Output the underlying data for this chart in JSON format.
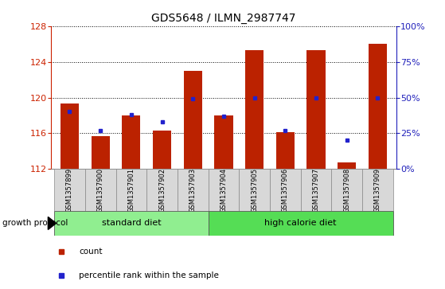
{
  "title": "GDS5648 / ILMN_2987747",
  "categories": [
    "GSM1357899",
    "GSM1357900",
    "GSM1357901",
    "GSM1357902",
    "GSM1357903",
    "GSM1357904",
    "GSM1357905",
    "GSM1357906",
    "GSM1357907",
    "GSM1357908",
    "GSM1357909"
  ],
  "bar_base": 112,
  "bar_values": [
    119.3,
    115.7,
    118.0,
    116.3,
    123.0,
    118.0,
    125.3,
    116.1,
    125.3,
    112.7,
    126.0
  ],
  "dot_values_pct": [
    40,
    27,
    38,
    33,
    49,
    37,
    50,
    27,
    50,
    20,
    50
  ],
  "ylim": [
    112,
    128
  ],
  "y2lim": [
    0,
    100
  ],
  "yticks": [
    112,
    116,
    120,
    124,
    128
  ],
  "y2ticks": [
    0,
    25,
    50,
    75,
    100
  ],
  "y2ticklabels": [
    "0%",
    "25%",
    "50%",
    "75%",
    "100%"
  ],
  "bar_color": "#BB2200",
  "dot_color": "#2222CC",
  "grid_color": "#000000",
  "tick_color_left": "#CC2200",
  "tick_color_right": "#2222BB",
  "groups_info": [
    {
      "label": "standard diet",
      "xstart": -0.5,
      "xend": 4.5,
      "color": "#90EE90"
    },
    {
      "label": "high calorie diet",
      "xstart": 4.5,
      "xend": 10.5,
      "color": "#55DD55"
    }
  ],
  "group_row_label": "growth protocol",
  "legend_items": [
    {
      "label": "count",
      "color": "#BB2200"
    },
    {
      "label": "percentile rank within the sample",
      "color": "#2222CC"
    }
  ],
  "bg_color": "#D8D8D8",
  "plot_bg": "#FFFFFF"
}
